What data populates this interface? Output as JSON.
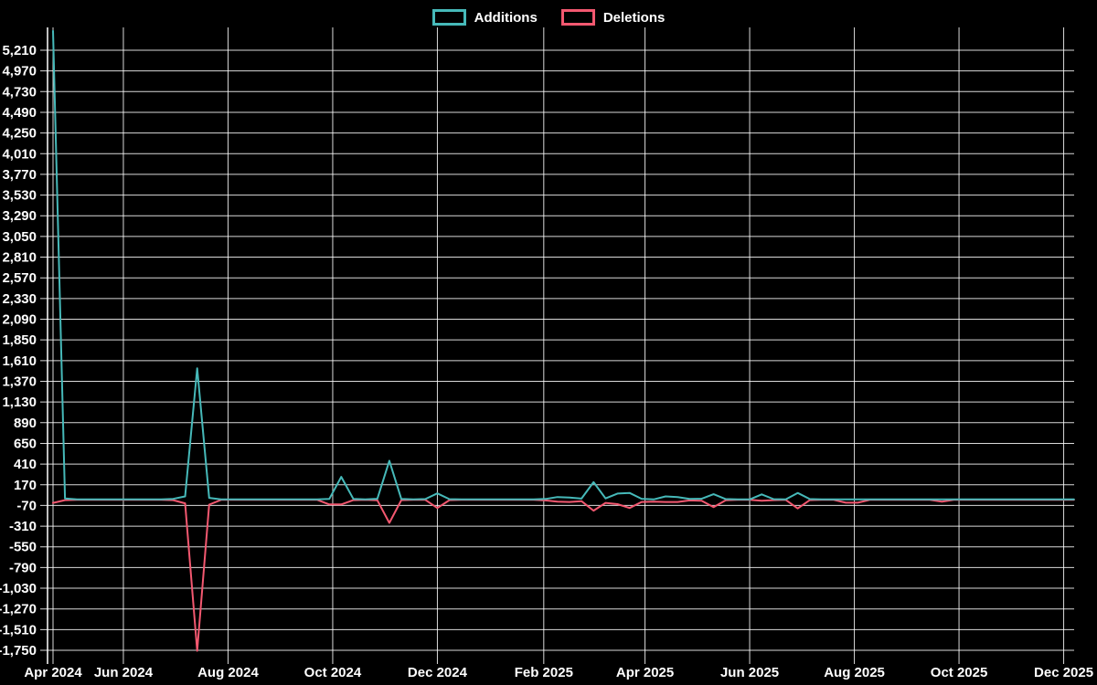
{
  "page": {
    "background": "#000000",
    "text_color": "#ffffff",
    "grid_color": "#ffffff"
  },
  "legend": {
    "items": [
      {
        "label": "Additions",
        "color": "#46b9b9"
      },
      {
        "label": "Deletions",
        "color": "#f35870"
      }
    ]
  },
  "chart_data": {
    "type": "line",
    "title": "",
    "xlabel": "",
    "ylabel": "",
    "x_unit": "week",
    "grid": true,
    "legend_position": "top",
    "ylim": [
      -1803,
      5496
    ],
    "xlim": [
      "2024-04-21",
      "2025-12-07"
    ],
    "ytick_values": [
      5210,
      4970,
      4730,
      4490,
      4250,
      4010,
      3770,
      3530,
      3290,
      3050,
      2810,
      2570,
      2330,
      2090,
      1850,
      1610,
      1370,
      1130,
      890,
      650,
      410,
      170,
      -70,
      -310,
      -550,
      -790,
      -1030,
      -1270,
      -1510,
      -1750
    ],
    "ytick_labels": [
      "5,210",
      "4,970",
      "4,730",
      "4,490",
      "4,250",
      "4,010",
      "3,770",
      "3,530",
      "3,290",
      "3,050",
      "2,810",
      "2,570",
      "2,330",
      "2,090",
      "1,850",
      "1,610",
      "1,370",
      "1,130",
      "890",
      "650",
      "410",
      "170",
      "-70",
      "-310",
      "-550",
      "-790",
      "-1,030",
      "-1,270",
      "-1,510",
      "-1,750"
    ],
    "xticks": [
      {
        "date": "2024-04-21",
        "label": "Apr 2024"
      },
      {
        "date": "2024-06-01",
        "label": "Jun 2024"
      },
      {
        "date": "2024-08-01",
        "label": "Aug 2024"
      },
      {
        "date": "2024-10-01",
        "label": "Oct 2024"
      },
      {
        "date": "2024-12-01",
        "label": "Dec 2024"
      },
      {
        "date": "2025-02-01",
        "label": "Feb 2025"
      },
      {
        "date": "2025-04-01",
        "label": "Apr 2025"
      },
      {
        "date": "2025-06-01",
        "label": "Jun 2025"
      },
      {
        "date": "2025-08-01",
        "label": "Aug 2025"
      },
      {
        "date": "2025-10-01",
        "label": "Oct 2025"
      },
      {
        "date": "2025-12-01",
        "label": "Dec 2025"
      }
    ],
    "weeks": [
      "2024-04-21",
      "2024-04-28",
      "2024-05-05",
      "2024-05-12",
      "2024-05-19",
      "2024-05-26",
      "2024-06-02",
      "2024-06-09",
      "2024-06-16",
      "2024-06-23",
      "2024-06-30",
      "2024-07-07",
      "2024-07-14",
      "2024-07-21",
      "2024-07-28",
      "2024-08-04",
      "2024-08-11",
      "2024-08-18",
      "2024-08-25",
      "2024-09-01",
      "2024-09-08",
      "2024-09-15",
      "2024-09-22",
      "2024-09-29",
      "2024-10-06",
      "2024-10-13",
      "2024-10-20",
      "2024-10-27",
      "2024-11-03",
      "2024-11-10",
      "2024-11-17",
      "2024-11-24",
      "2024-12-01",
      "2024-12-08",
      "2024-12-15",
      "2024-12-22",
      "2024-12-29",
      "2025-01-05",
      "2025-01-12",
      "2025-01-19",
      "2025-01-26",
      "2025-02-02",
      "2025-02-09",
      "2025-02-16",
      "2025-02-23",
      "2025-03-02",
      "2025-03-09",
      "2025-03-16",
      "2025-03-23",
      "2025-03-30",
      "2025-04-06",
      "2025-04-13",
      "2025-04-20",
      "2025-04-27",
      "2025-05-04",
      "2025-05-11",
      "2025-05-18",
      "2025-05-25",
      "2025-06-01",
      "2025-06-08",
      "2025-06-15",
      "2025-06-22",
      "2025-06-29",
      "2025-07-06",
      "2025-07-13",
      "2025-07-20",
      "2025-07-27",
      "2025-08-03",
      "2025-08-10",
      "2025-08-17",
      "2025-08-24",
      "2025-08-31",
      "2025-09-07",
      "2025-09-14",
      "2025-09-21",
      "2025-09-28",
      "2025-10-05",
      "2025-10-12",
      "2025-10-19",
      "2025-10-26",
      "2025-11-02",
      "2025-11-09",
      "2025-11-16",
      "2025-11-23",
      "2025-11-30",
      "2025-12-07"
    ],
    "series": [
      {
        "name": "Additions",
        "color": "#46b9b9",
        "values": [
          5433,
          12,
          0,
          0,
          0,
          0,
          0,
          0,
          0,
          0,
          6,
          35,
          1520,
          18,
          0,
          0,
          0,
          0,
          0,
          0,
          0,
          0,
          0,
          5,
          262,
          6,
          0,
          8,
          448,
          5,
          0,
          4,
          70,
          3,
          0,
          0,
          0,
          0,
          0,
          0,
          0,
          5,
          28,
          22,
          10,
          200,
          12,
          68,
          75,
          8,
          0,
          35,
          28,
          5,
          8,
          60,
          4,
          0,
          0,
          58,
          3,
          0,
          75,
          4,
          0,
          0,
          0,
          0,
          0,
          0,
          0,
          0,
          0,
          0,
          0,
          0,
          0,
          0,
          0,
          0,
          0,
          0,
          0,
          0,
          0,
          0
        ]
      },
      {
        "name": "Deletions",
        "color": "#f35870",
        "values": [
          -40,
          -8,
          -5,
          -5,
          -5,
          -5,
          -5,
          -5,
          -5,
          -5,
          -8,
          -45,
          -1756,
          -60,
          -5,
          -5,
          -5,
          -5,
          -5,
          -5,
          -5,
          -5,
          -5,
          -58,
          -58,
          -8,
          -5,
          -10,
          -272,
          -8,
          -5,
          -5,
          -100,
          -8,
          -5,
          -5,
          -5,
          -5,
          -5,
          -5,
          -5,
          -12,
          -25,
          -30,
          -20,
          -130,
          -40,
          -55,
          -100,
          -30,
          -25,
          -30,
          -30,
          -12,
          -15,
          -90,
          -10,
          -5,
          -5,
          -16,
          -8,
          -5,
          -105,
          -8,
          -5,
          -5,
          -38,
          -38,
          -5,
          -5,
          -5,
          -5,
          -5,
          -5,
          -25,
          -5,
          -5,
          -5,
          -5,
          -5,
          -5,
          -5,
          -5,
          -5,
          -5,
          -5
        ]
      }
    ]
  }
}
